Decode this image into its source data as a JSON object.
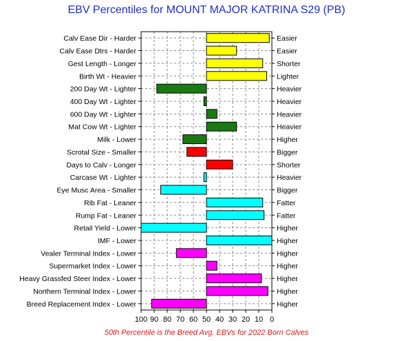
{
  "chart_data": {
    "type": "bar",
    "orientation": "horizontal",
    "title": "EBV Percentiles for MOUNT MAJOR KATRINA S29 (PB)",
    "footnote": "50th Percentile is the Breed Avg. EBVs for 2022 Born Calves",
    "xlim": [
      100,
      0
    ],
    "x_ticks": [
      "100",
      "90",
      "80",
      "70",
      "60",
      "50",
      "40",
      "30",
      "20",
      "10",
      "0"
    ],
    "baseline": 50,
    "grid": true,
    "colors": {
      "yellow": "#ffff00",
      "green": "#1a7a12",
      "red": "#ff0000",
      "cyan": "#00ffff",
      "magenta": "#ff00ff",
      "title": "#1f2fd0",
      "footnote": "#e01818"
    },
    "rows": [
      {
        "left_label": "Calv Ease Dir - Harder",
        "right_label": "Easier",
        "percentile": 2,
        "color": "yellow"
      },
      {
        "left_label": "Calv Ease Dtrs - Harder",
        "right_label": "Easier",
        "percentile": 27,
        "color": "yellow"
      },
      {
        "left_label": "Gest Length - Longer",
        "right_label": "Shorter",
        "percentile": 7,
        "color": "yellow"
      },
      {
        "left_label": "Birth Wt - Heavier",
        "right_label": "Lighter",
        "percentile": 4,
        "color": "yellow"
      },
      {
        "left_label": "200 Day Wt - Lighter",
        "right_label": "Heavier",
        "percentile": 88,
        "color": "green"
      },
      {
        "left_label": "400 Day Wt - Lighter",
        "right_label": "Heavier",
        "percentile": 52,
        "color": "green"
      },
      {
        "left_label": "600 Day Wt - Lighter",
        "right_label": "Heavier",
        "percentile": 42,
        "color": "green"
      },
      {
        "left_label": "Mat Cow Wt - Lighter",
        "right_label": "Heavier",
        "percentile": 27,
        "color": "green"
      },
      {
        "left_label": "Milk - Lower",
        "right_label": "Higher",
        "percentile": 68,
        "color": "green"
      },
      {
        "left_label": "Scrotal Size - Smaller",
        "right_label": "Bigger",
        "percentile": 65,
        "color": "red"
      },
      {
        "left_label": "Days to Calv - Longer",
        "right_label": "Shorter",
        "percentile": 30,
        "color": "red"
      },
      {
        "left_label": "Carcase Wt - Lighter",
        "right_label": "Heavier",
        "percentile": 52,
        "color": "cyan"
      },
      {
        "left_label": "Eye Musc Area - Smaller",
        "right_label": "Bigger",
        "percentile": 85,
        "color": "cyan"
      },
      {
        "left_label": "Rib Fat - Leaner",
        "right_label": "Fatter",
        "percentile": 7,
        "color": "cyan"
      },
      {
        "left_label": "Rump Fat - Leaner",
        "right_label": "Fatter",
        "percentile": 6,
        "color": "cyan"
      },
      {
        "left_label": "Retail Yield - Lower",
        "right_label": "Higher",
        "percentile": 100,
        "color": "cyan"
      },
      {
        "left_label": "IMF - Lower",
        "right_label": "Higher",
        "percentile": 0,
        "color": "cyan"
      },
      {
        "left_label": "Vealer Terminal Index - Lower",
        "right_label": "Higher",
        "percentile": 73,
        "color": "magenta"
      },
      {
        "left_label": "Supermarket Index - Lower",
        "right_label": "Higher",
        "percentile": 42,
        "color": "magenta"
      },
      {
        "left_label": "Heavy Grassfed Steer Index - Lower",
        "right_label": "Higher",
        "percentile": 8,
        "color": "magenta"
      },
      {
        "left_label": "Northern Terminal Index - Lower",
        "right_label": "Higher",
        "percentile": 3,
        "color": "magenta"
      },
      {
        "left_label": "Breed Replacement Index - Lower",
        "right_label": "Higher",
        "percentile": 92,
        "color": "magenta"
      }
    ]
  }
}
